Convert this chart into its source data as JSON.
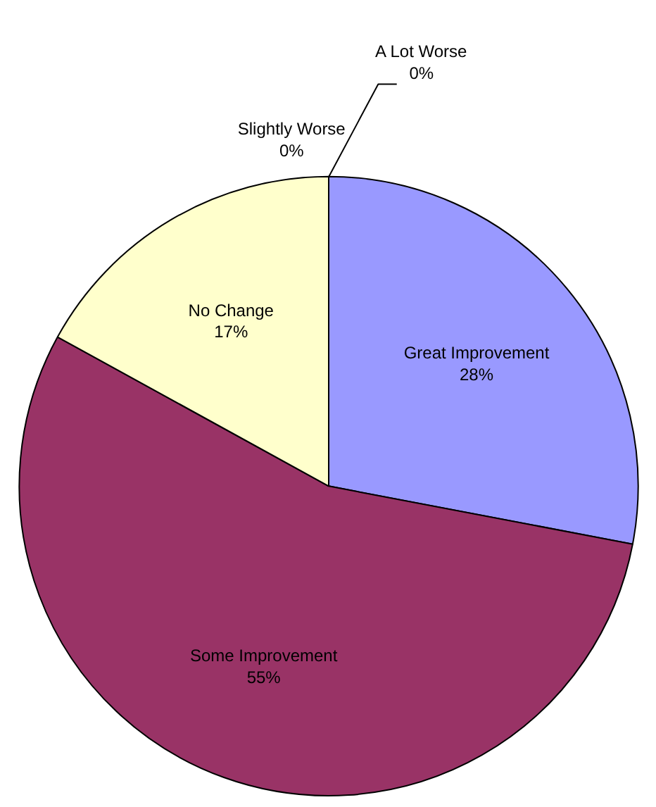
{
  "chart_data": {
    "type": "pie",
    "categories": [
      "Great Improvement",
      "Some Improvement",
      "No Change",
      "Slightly Worse",
      "A Lot Worse"
    ],
    "values": [
      28,
      55,
      17,
      0,
      0
    ],
    "value_labels": [
      "28%",
      "55%",
      "17%",
      "0%",
      "0%"
    ],
    "colors": [
      "#9999ff",
      "#993366",
      "#ffffcc",
      "#00ccff",
      "#ccffff"
    ]
  }
}
